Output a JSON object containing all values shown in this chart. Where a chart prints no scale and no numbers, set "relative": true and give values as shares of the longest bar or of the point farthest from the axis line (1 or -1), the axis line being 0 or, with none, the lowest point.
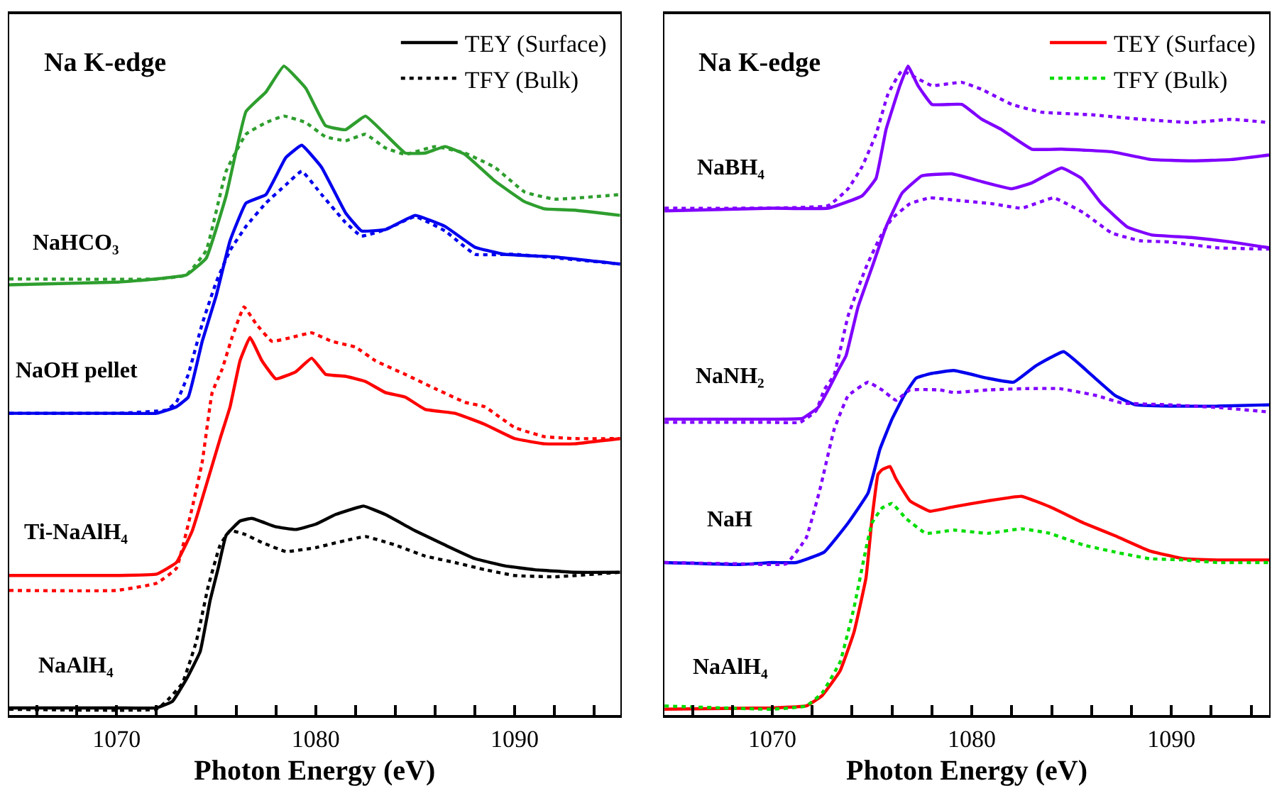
{
  "chart_data": [
    {
      "type": "line",
      "relative": true,
      "xlabel": "Photon Energy (eV)",
      "xlim": [
        1064.6,
        1095.3
      ],
      "xticks": [
        {
          "value": 1066,
          "label": null
        },
        {
          "value": 1068,
          "label": null
        },
        1070,
        {
          "value": 1072,
          "label": null
        },
        {
          "value": 1074,
          "label": null
        },
        {
          "value": 1076,
          "label": null
        },
        {
          "value": 1078,
          "label": null
        },
        1080,
        {
          "value": 1082,
          "label": null
        },
        {
          "value": 1084,
          "label": null
        },
        {
          "value": 1086,
          "label": null
        },
        {
          "value": 1088,
          "label": null
        },
        1090,
        {
          "value": 1092,
          "label": null
        },
        {
          "value": 1094,
          "label": null
        }
      ],
      "tick_labels": "x",
      "legend": "top right",
      "annotations": [
        "Na K-edge",
        "NaHCO₃",
        "NaOH pellet",
        "Ti-NaAlH₄",
        "NaAlH₄"
      ],
      "series": [
        {
          "color": "#2e9e2e",
          "line_style": "solid",
          "x": [
            1064.6,
            1070,
            1072,
            1073.5,
            1074.5,
            1075.5,
            1076.5,
            1077.5,
            1078.4,
            1079.5,
            1080.5,
            1081.5,
            1082.5,
            1083.5,
            1084.5,
            1085.5,
            1086.5,
            1087.5,
            1089,
            1090.5,
            1091.5,
            1093,
            1095.3
          ],
          "values": [
            0.663,
            0.667,
            0.672,
            0.678,
            0.704,
            0.8,
            0.93,
            0.96,
            1.0,
            0.966,
            0.908,
            0.902,
            0.923,
            0.895,
            0.866,
            0.866,
            0.876,
            0.864,
            0.823,
            0.791,
            0.78,
            0.778,
            0.77
          ]
        },
        {
          "color": "#2e9e2e",
          "line_style": "dotted",
          "x": [
            1064.6,
            1072,
            1073.5,
            1074.5,
            1075.5,
            1076.5,
            1077.5,
            1078.4,
            1079.5,
            1080.5,
            1081.5,
            1082.5,
            1083.5,
            1084.5,
            1086,
            1087.5,
            1089,
            1090.5,
            1092,
            1095.3
          ],
          "values": [
            0.672,
            0.672,
            0.678,
            0.716,
            0.838,
            0.895,
            0.913,
            0.923,
            0.913,
            0.891,
            0.885,
            0.895,
            0.874,
            0.864,
            0.876,
            0.866,
            0.844,
            0.806,
            0.795,
            0.802
          ]
        },
        {
          "color": "#0000ee",
          "line_style": "solid",
          "x": [
            1064.6,
            1070,
            1072,
            1073,
            1073.6,
            1074.3,
            1075,
            1075.7,
            1076.5,
            1077.5,
            1078.5,
            1079.3,
            1080.3,
            1081.5,
            1082.3,
            1083.5,
            1085,
            1086.5,
            1088,
            1089.5,
            1092,
            1095.3
          ],
          "values": [
            0.465,
            0.465,
            0.465,
            0.475,
            0.49,
            0.576,
            0.646,
            0.731,
            0.789,
            0.802,
            0.859,
            0.878,
            0.844,
            0.774,
            0.746,
            0.748,
            0.77,
            0.753,
            0.721,
            0.71,
            0.706,
            0.695
          ]
        },
        {
          "color": "#0000ee",
          "line_style": "dotted",
          "x": [
            1064.6,
            1070,
            1072.5,
            1073,
            1073.6,
            1074.3,
            1075,
            1075.7,
            1076.5,
            1077.5,
            1078.5,
            1079.3,
            1080.3,
            1081.5,
            1082.3,
            1083.5,
            1085,
            1086.5,
            1088,
            1090,
            1095.3
          ],
          "values": [
            0.465,
            0.465,
            0.47,
            0.482,
            0.525,
            0.603,
            0.667,
            0.716,
            0.753,
            0.789,
            0.817,
            0.838,
            0.802,
            0.759,
            0.738,
            0.748,
            0.768,
            0.746,
            0.71,
            0.71,
            0.695
          ]
        },
        {
          "color": "#ff0000",
          "line_style": "solid",
          "x": [
            1064.6,
            1070,
            1072,
            1073,
            1073.8,
            1074.5,
            1075.2,
            1075.7,
            1076.2,
            1076.7,
            1077.3,
            1078,
            1079,
            1079.8,
            1080.5,
            1081.5,
            1082.5,
            1083.5,
            1084.5,
            1085.5,
            1087,
            1088.5,
            1090,
            1091.5,
            1093,
            1095.3
          ],
          "values": [
            0.215,
            0.215,
            0.217,
            0.235,
            0.284,
            0.354,
            0.426,
            0.475,
            0.546,
            0.582,
            0.546,
            0.518,
            0.529,
            0.55,
            0.525,
            0.522,
            0.514,
            0.497,
            0.49,
            0.471,
            0.465,
            0.448,
            0.426,
            0.418,
            0.418,
            0.426
          ]
        },
        {
          "color": "#ff0000",
          "line_style": "dotted",
          "x": [
            1064.6,
            1070,
            1072,
            1073,
            1073.8,
            1074.3,
            1074.8,
            1075.3,
            1075.8,
            1076.4,
            1077,
            1077.8,
            1078.8,
            1079.8,
            1080.8,
            1082,
            1083,
            1084.5,
            1086,
            1087.5,
            1088.5,
            1090,
            1091.5,
            1093,
            1095.3
          ],
          "values": [
            0.192,
            0.192,
            0.203,
            0.226,
            0.32,
            0.39,
            0.497,
            0.533,
            0.582,
            0.629,
            0.603,
            0.576,
            0.582,
            0.589,
            0.576,
            0.567,
            0.546,
            0.525,
            0.503,
            0.482,
            0.475,
            0.443,
            0.429,
            0.426,
            0.426
          ]
        },
        {
          "name": "TEY (Surface)",
          "color": "#000000",
          "line_style": "solid",
          "x": [
            1064.6,
            1070,
            1072,
            1072.8,
            1073.5,
            1074.2,
            1074.7,
            1075.1,
            1075.5,
            1076.2,
            1076.8,
            1078,
            1079,
            1080,
            1081,
            1082.4,
            1083.5,
            1085,
            1086.5,
            1088,
            1089.5,
            1091,
            1093,
            1095.3
          ],
          "values": [
            0.011,
            0.011,
            0.011,
            0.021,
            0.055,
            0.098,
            0.177,
            0.226,
            0.277,
            0.299,
            0.303,
            0.29,
            0.286,
            0.294,
            0.309,
            0.322,
            0.309,
            0.284,
            0.262,
            0.241,
            0.23,
            0.224,
            0.22,
            0.22
          ]
        },
        {
          "name": "TFY (Bulk)",
          "color": "#000000",
          "line_style": "dotted",
          "x": [
            1064.6,
            1072,
            1072.5,
            1073.3,
            1074,
            1074.6,
            1075.2,
            1075.7,
            1076.4,
            1077.3,
            1078.5,
            1080,
            1081.5,
            1082.5,
            1084,
            1085.5,
            1087,
            1088.5,
            1090,
            1092,
            1095.3
          ],
          "values": [
            0.009,
            0.009,
            0.021,
            0.049,
            0.113,
            0.198,
            0.262,
            0.284,
            0.279,
            0.266,
            0.252,
            0.258,
            0.269,
            0.275,
            0.262,
            0.245,
            0.235,
            0.224,
            0.215,
            0.213,
            0.22
          ]
        }
      ]
    },
    {
      "type": "line",
      "relative": true,
      "xlabel": "Photon Energy (eV)",
      "xlim": [
        1064.6,
        1094.9
      ],
      "xticks": [
        {
          "value": 1066,
          "label": null
        },
        {
          "value": 1068,
          "label": null
        },
        1070,
        {
          "value": 1072,
          "label": null
        },
        {
          "value": 1074,
          "label": null
        },
        {
          "value": 1076,
          "label": null
        },
        {
          "value": 1078,
          "label": null
        },
        1080,
        {
          "value": 1082,
          "label": null
        },
        {
          "value": 1084,
          "label": null
        },
        {
          "value": 1086,
          "label": null
        },
        {
          "value": 1088,
          "label": null
        },
        1090,
        {
          "value": 1092,
          "label": null
        },
        {
          "value": 1094,
          "label": null
        }
      ],
      "tick_labels": "x",
      "legend": "top right",
      "annotations": [
        "Na K-edge",
        "NaBH₄",
        "NaNH₂",
        "NaH",
        "NaAlH₄"
      ],
      "series": [
        {
          "color": "#8000ff",
          "line_style": "solid",
          "x": [
            1064.6,
            1070,
            1072.8,
            1074.5,
            1075.2,
            1075.7,
            1076.4,
            1076.8,
            1077.3,
            1078,
            1079.5,
            1080.5,
            1081.5,
            1083,
            1084.5,
            1087,
            1089,
            1091,
            1093,
            1094.9
          ],
          "values": [
            0.777,
            0.781,
            0.781,
            0.8,
            0.827,
            0.902,
            0.97,
            1.0,
            0.97,
            0.941,
            0.941,
            0.918,
            0.902,
            0.872,
            0.872,
            0.868,
            0.856,
            0.854,
            0.856,
            0.863
          ]
        },
        {
          "color": "#8000ff",
          "line_style": "dotted",
          "x": [
            1064.6,
            1072.8,
            1073.8,
            1074.5,
            1075.2,
            1075.8,
            1076.5,
            1077.2,
            1078,
            1079.5,
            1080.5,
            1082,
            1083.5,
            1086,
            1088.5,
            1091,
            1093,
            1094.9
          ],
          "values": [
            0.781,
            0.785,
            0.811,
            0.845,
            0.895,
            0.957,
            0.993,
            0.982,
            0.97,
            0.975,
            0.964,
            0.941,
            0.929,
            0.925,
            0.918,
            0.913,
            0.918,
            0.913
          ]
        },
        {
          "color": "#8000ff",
          "line_style": "solid",
          "x": [
            1064.6,
            1070,
            1071.5,
            1072.3,
            1072.8,
            1073.3,
            1073.7,
            1074.3,
            1075,
            1075.7,
            1076.5,
            1077.5,
            1079,
            1080.5,
            1082,
            1083,
            1084.5,
            1085.5,
            1086.5,
            1087.8,
            1089,
            1091,
            1093,
            1094.9
          ],
          "values": [
            0.456,
            0.456,
            0.457,
            0.474,
            0.501,
            0.531,
            0.554,
            0.629,
            0.69,
            0.752,
            0.804,
            0.831,
            0.834,
            0.822,
            0.811,
            0.82,
            0.843,
            0.827,
            0.788,
            0.752,
            0.74,
            0.736,
            0.729,
            0.72
          ]
        },
        {
          "color": "#8000ff",
          "line_style": "dotted",
          "x": [
            1064.6,
            1070,
            1071.4,
            1072.2,
            1072.6,
            1073.1,
            1073.8,
            1074.7,
            1075.4,
            1076,
            1076.9,
            1077.9,
            1079.3,
            1081,
            1082.5,
            1084.1,
            1085.6,
            1087,
            1088.4,
            1089.9,
            1092.3,
            1094.9
          ],
          "values": [
            0.451,
            0.451,
            0.451,
            0.469,
            0.501,
            0.524,
            0.615,
            0.69,
            0.736,
            0.765,
            0.788,
            0.797,
            0.793,
            0.788,
            0.781,
            0.797,
            0.774,
            0.743,
            0.731,
            0.729,
            0.72,
            0.718
          ]
        },
        {
          "color": "#0000ee",
          "line_style": "solid",
          "x": [
            1064.6,
            1068.4,
            1070,
            1071.2,
            1072.6,
            1073.8,
            1074.8,
            1075.4,
            1076,
            1076.6,
            1077.2,
            1077.9,
            1079.1,
            1080.8,
            1082.1,
            1083.2,
            1084.6,
            1086,
            1087.2,
            1088.2,
            1089.9,
            1092.3,
            1094.9
          ],
          "values": [
            0.235,
            0.232,
            0.235,
            0.235,
            0.251,
            0.296,
            0.342,
            0.41,
            0.456,
            0.492,
            0.519,
            0.526,
            0.531,
            0.519,
            0.513,
            0.538,
            0.56,
            0.524,
            0.492,
            0.478,
            0.476,
            0.476,
            0.478
          ]
        },
        {
          "color": "#8000ff",
          "line_style": "dotted",
          "x": [
            1064.6,
            1068.4,
            1070.7,
            1071.7,
            1072.4,
            1073.1,
            1073.8,
            1074.8,
            1075.5,
            1076.2,
            1076.9,
            1078.4,
            1079.1,
            1080.8,
            1082.7,
            1084.4,
            1086.3,
            1087.5,
            1089.9,
            1092.3,
            1094.9
          ],
          "values": [
            0.235,
            0.233,
            0.233,
            0.273,
            0.349,
            0.44,
            0.492,
            0.513,
            0.501,
            0.485,
            0.501,
            0.501,
            0.497,
            0.501,
            0.503,
            0.503,
            0.492,
            0.481,
            0.478,
            0.474,
            0.467
          ]
        },
        {
          "name": "TEY (Surface)",
          "color": "#ff0000",
          "line_style": "solid",
          "x": [
            1064.6,
            1070,
            1071.7,
            1072.5,
            1073.4,
            1074.1,
            1074.7,
            1075,
            1075.3,
            1075.5,
            1075.9,
            1076.2,
            1076.9,
            1077.9,
            1079.1,
            1080.8,
            1082.5,
            1083.9,
            1085.6,
            1087.2,
            1088.9,
            1090.6,
            1092.3,
            1094.9
          ],
          "values": [
            0.009,
            0.011,
            0.014,
            0.03,
            0.068,
            0.128,
            0.212,
            0.303,
            0.371,
            0.378,
            0.383,
            0.364,
            0.33,
            0.314,
            0.321,
            0.33,
            0.337,
            0.321,
            0.296,
            0.276,
            0.253,
            0.241,
            0.239,
            0.239
          ]
        },
        {
          "name": "TFY (Bulk)",
          "color": "#00dd00",
          "line_style": "dotted",
          "x": [
            1064.6,
            1070,
            1071.7,
            1072.5,
            1073.4,
            1074.1,
            1074.7,
            1075,
            1075.5,
            1076,
            1076.7,
            1077.7,
            1079.1,
            1080.8,
            1082.5,
            1083.9,
            1085.6,
            1087.2,
            1088.9,
            1090.6,
            1092.3,
            1094.9
          ],
          "values": [
            0.014,
            0.009,
            0.014,
            0.034,
            0.082,
            0.166,
            0.257,
            0.296,
            0.319,
            0.326,
            0.303,
            0.28,
            0.285,
            0.28,
            0.287,
            0.28,
            0.262,
            0.251,
            0.241,
            0.239,
            0.235,
            0.235
          ]
        }
      ]
    }
  ]
}
